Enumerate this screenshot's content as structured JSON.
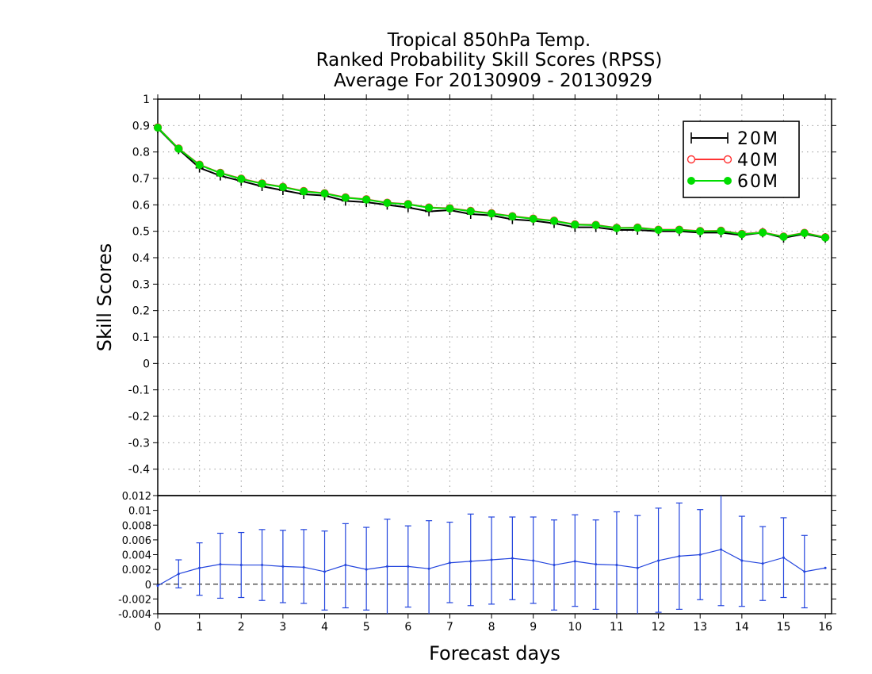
{
  "chart_data": [
    {
      "type": "line",
      "title": [
        "Tropical 850hPa Temp.",
        "Ranked Probability Skill Scores (RPSS)",
        "Average For 20130909 - 20130929"
      ],
      "ylabel": "Skill Scores",
      "ylim": [
        -0.5,
        1
      ],
      "yticks": [
        1,
        0.9,
        0.8,
        0.7,
        0.6,
        0.5,
        0.4,
        0.3,
        0.2,
        0.1,
        0,
        -0.1,
        -0.2,
        -0.3,
        -0.4
      ],
      "grid": true,
      "legend_position": "top-right",
      "x": [
        0,
        0.5,
        1,
        1.5,
        2,
        2.5,
        3,
        3.5,
        4,
        4.5,
        5,
        5.5,
        6,
        6.5,
        7,
        7.5,
        8,
        8.5,
        9,
        9.5,
        10,
        10.5,
        11,
        11.5,
        12,
        12.5,
        13,
        13.5,
        14,
        14.5,
        15,
        15.5,
        16
      ],
      "series": [
        {
          "name": "20M",
          "color": "#000000",
          "marker": "plus",
          "values": [
            0.89,
            0.81,
            0.74,
            0.71,
            0.69,
            0.67,
            0.655,
            0.64,
            0.635,
            0.615,
            0.61,
            0.6,
            0.59,
            0.575,
            0.58,
            0.565,
            0.56,
            0.545,
            0.54,
            0.53,
            0.515,
            0.515,
            0.505,
            0.505,
            0.5,
            0.5,
            0.495,
            0.495,
            0.485,
            0.495,
            0.475,
            0.49,
            0.475
          ]
        },
        {
          "name": "40M",
          "color": "#ff3333",
          "marker": "open-circle",
          "values": [
            0.893,
            0.813,
            0.752,
            0.721,
            0.699,
            0.681,
            0.668,
            0.652,
            0.644,
            0.628,
            0.621,
            0.608,
            0.603,
            0.59,
            0.587,
            0.577,
            0.568,
            0.557,
            0.548,
            0.54,
            0.526,
            0.524,
            0.513,
            0.514,
            0.506,
            0.506,
            0.501,
            0.502,
            0.49,
            0.496,
            0.48,
            0.494,
            0.477
          ]
        },
        {
          "name": "60M",
          "color": "#00dd00",
          "marker": "filled-circle",
          "values": [
            0.892,
            0.812,
            0.751,
            0.72,
            0.698,
            0.68,
            0.667,
            0.651,
            0.643,
            0.627,
            0.62,
            0.607,
            0.602,
            0.589,
            0.586,
            0.576,
            0.567,
            0.556,
            0.547,
            0.539,
            0.525,
            0.523,
            0.512,
            0.513,
            0.505,
            0.505,
            0.5,
            0.501,
            0.489,
            0.495,
            0.479,
            0.493,
            0.476
          ]
        }
      ]
    },
    {
      "type": "line",
      "xlabel": "Forecast days",
      "ylim": [
        -0.004,
        0.012
      ],
      "yticks": [
        0.012,
        0.01,
        0.008,
        0.006,
        0.004,
        0.002,
        0,
        -0.002,
        -0.004
      ],
      "ytick_labels": [
        "0.012",
        "0.01",
        "0.008",
        "0.006",
        "0.004",
        "0.002",
        "0",
        "-0.002",
        "-0.004"
      ],
      "xticks": [
        0,
        1,
        2,
        3,
        4,
        5,
        6,
        7,
        8,
        9,
        10,
        11,
        12,
        13,
        14,
        15,
        16
      ],
      "zero_line": "dashed",
      "x": [
        0,
        0.5,
        1,
        1.5,
        2,
        2.5,
        3,
        3.5,
        4,
        4.5,
        5,
        5.5,
        6,
        6.5,
        7,
        7.5,
        8,
        8.5,
        9,
        9.5,
        10,
        10.5,
        11,
        11.5,
        12,
        12.5,
        13,
        13.5,
        14,
        14.5,
        15,
        15.5,
        16
      ],
      "series": [
        {
          "color": "#2244dd",
          "values": [
            -0.0002,
            0.0014,
            0.0022,
            0.0027,
            0.0026,
            0.0026,
            0.0024,
            0.0023,
            0.0017,
            0.0026,
            0.002,
            0.0024,
            0.0024,
            0.0021,
            0.0029,
            0.0031,
            0.0033,
            0.0035,
            0.0032,
            0.0026,
            0.0031,
            0.0027,
            0.0026,
            0.0022,
            0.0032,
            0.0038,
            0.004,
            0.0047,
            0.0032,
            0.0028,
            0.0036,
            0.0017,
            0.0022
          ],
          "error_upper": [
            null,
            0.0033,
            0.0056,
            0.0069,
            0.007,
            0.0074,
            0.0073,
            0.0074,
            0.0072,
            0.0082,
            0.0077,
            0.0088,
            0.0079,
            0.0086,
            0.0084,
            0.0095,
            0.0091,
            0.0091,
            0.0091,
            0.0087,
            0.0094,
            0.0087,
            0.0098,
            0.0093,
            0.0103,
            0.011,
            0.0101,
            0.0125,
            0.0092,
            0.0078,
            0.009,
            0.0066,
            null
          ],
          "error_lower": [
            null,
            -0.0005,
            -0.0015,
            -0.0019,
            -0.0018,
            -0.0022,
            -0.0025,
            -0.0026,
            -0.0035,
            -0.0032,
            -0.0035,
            -0.004,
            -0.0031,
            -0.004,
            -0.0025,
            -0.0029,
            -0.0027,
            -0.0021,
            -0.0026,
            -0.0035,
            -0.003,
            -0.0034,
            -0.004,
            -0.004,
            -0.0038,
            -0.0034,
            -0.0021,
            -0.0029,
            -0.003,
            -0.0022,
            -0.0018,
            -0.0032,
            null
          ]
        }
      ]
    }
  ]
}
